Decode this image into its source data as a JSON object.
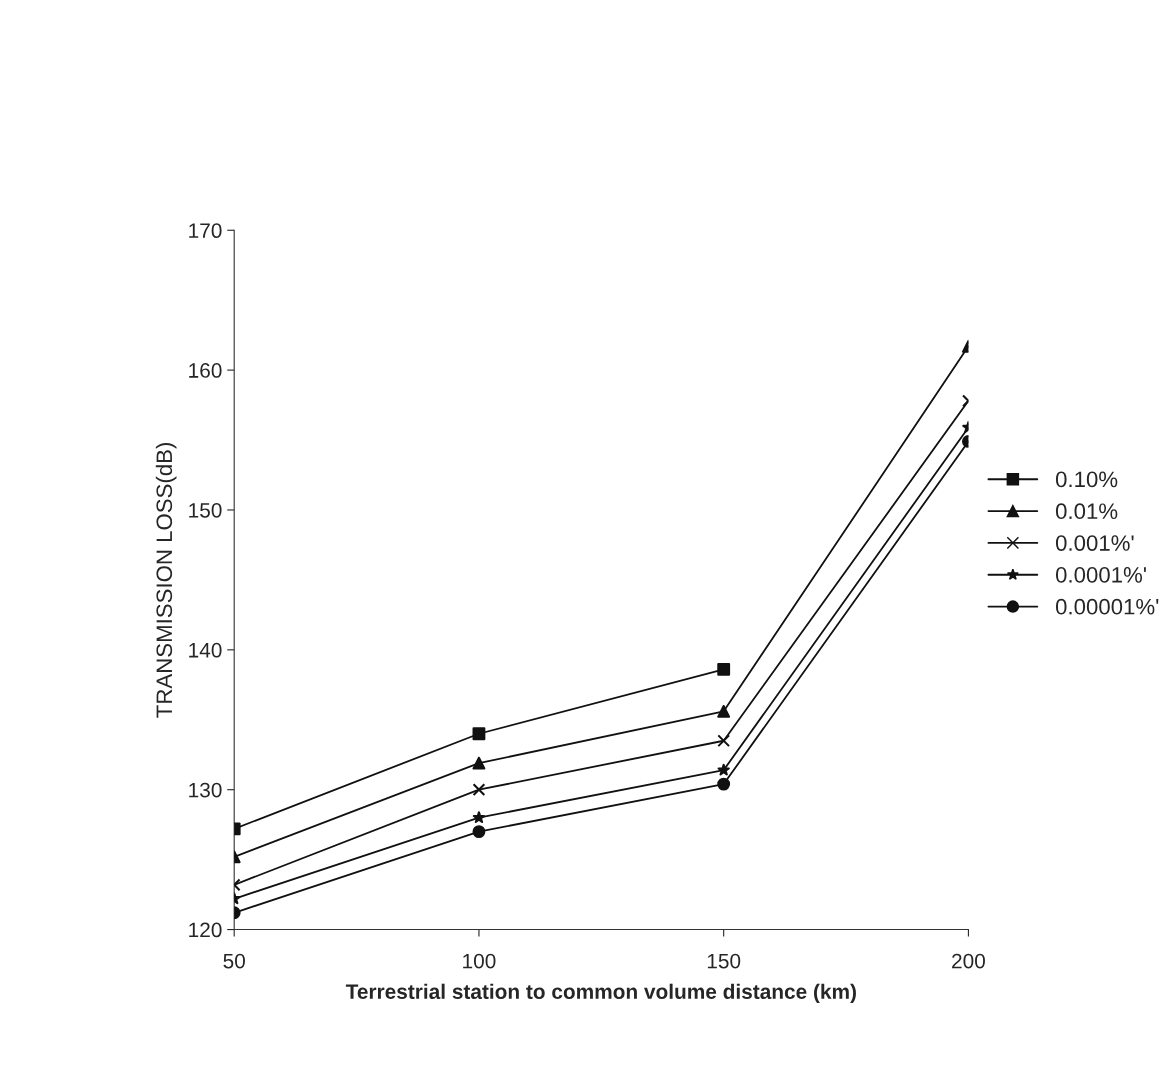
{
  "chart_data": {
    "type": "line",
    "xlabel": "Terrestrial station to common volume distance (km)",
    "ylabel": "TRANSMISSION LOSS(dB)",
    "x": [
      50,
      100,
      150,
      200
    ],
    "xlim": [
      50,
      200
    ],
    "xticks": [
      50,
      100,
      150,
      200
    ],
    "ylim": [
      120,
      170
    ],
    "yticks": [
      120,
      130,
      140,
      150,
      160,
      170
    ],
    "grid": false,
    "legend": "right",
    "series": [
      {
        "name": "0.10%",
        "color": "#111111",
        "marker": "square",
        "values": [
          127.2,
          134.0,
          138.6,
          null
        ]
      },
      {
        "name": "0.01%",
        "color": "#111111",
        "marker": "triangle",
        "values": [
          125.2,
          131.9,
          135.6,
          161.7
        ]
      },
      {
        "name": "0.001%'",
        "color": "#111111",
        "marker": "cross",
        "values": [
          123.2,
          130.0,
          133.5,
          157.8
        ]
      },
      {
        "name": "0.0001%'",
        "color": "#111111",
        "marker": "star",
        "values": [
          122.2,
          128.0,
          131.4,
          155.9
        ]
      },
      {
        "name": "0.00001%'",
        "color": "#111111",
        "marker": "circle",
        "values": [
          121.2,
          127.0,
          130.4,
          154.9
        ]
      }
    ]
  }
}
